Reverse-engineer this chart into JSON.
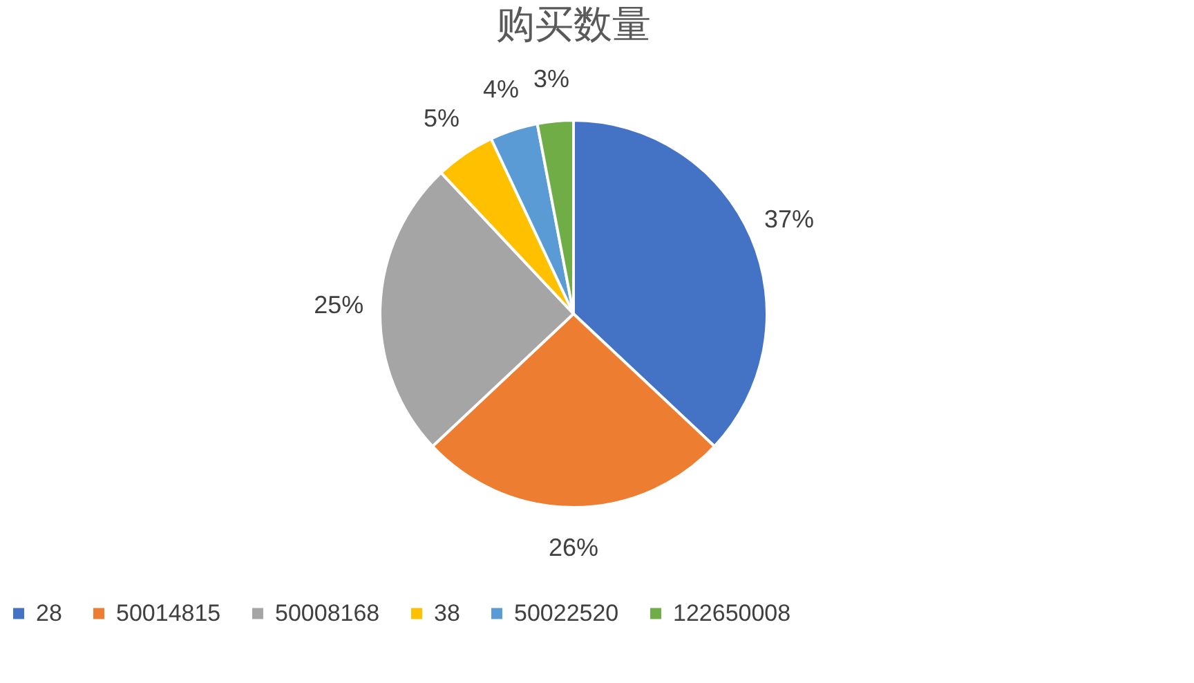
{
  "chart_data": {
    "type": "pie",
    "title": "购买数量",
    "categories": [
      "28",
      "50014815",
      "50008168",
      "38",
      "50022520",
      "122650008"
    ],
    "values": [
      37,
      26,
      25,
      5,
      4,
      3
    ],
    "value_labels": [
      "37%",
      "26%",
      "25%",
      "5%",
      "4%",
      "3%"
    ],
    "colors": [
      "#4472c4",
      "#ed7d31",
      "#a5a5a5",
      "#ffc000",
      "#5b9bd5",
      "#70ad47"
    ],
    "legend": "bottom"
  }
}
